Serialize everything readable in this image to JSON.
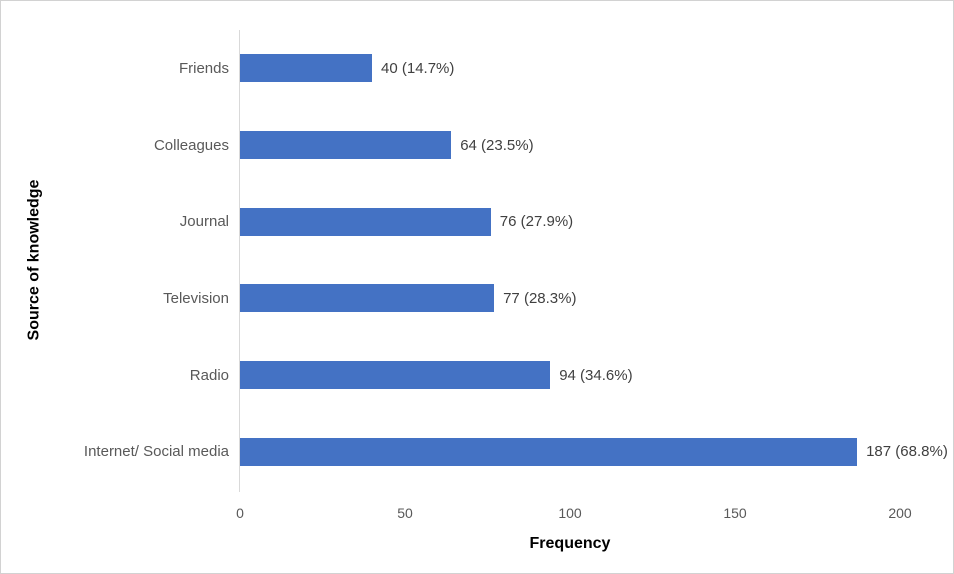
{
  "figure": {
    "background": "#ffffff",
    "border_color": "#d2d2d2"
  },
  "chart_data": {
    "type": "bar",
    "orientation": "horizontal",
    "title": "",
    "xlabel": "Frequency",
    "ylabel": "Source of knowledge",
    "categories": [
      "Friends",
      "Colleagues",
      "Journal",
      "Television",
      "Radio",
      "Internet/ Social media"
    ],
    "values": [
      40,
      64,
      76,
      77,
      94,
      187
    ],
    "data_labels": [
      "40 (14.7%)",
      "64 (23.5%)",
      "76 (27.9%)",
      "77 (28.3%)",
      "94 (34.6%)",
      "187 (68.8%)"
    ],
    "xlim": [
      0,
      200
    ],
    "x_ticks": [
      0,
      50,
      100,
      150,
      200
    ],
    "grid": false,
    "legend": false,
    "bar_color": "#4472c4",
    "axis_line_color": "#d9d9d9",
    "category_label_color": "#595959",
    "data_label_color": "#404040",
    "tick_label_color": "#595959"
  }
}
